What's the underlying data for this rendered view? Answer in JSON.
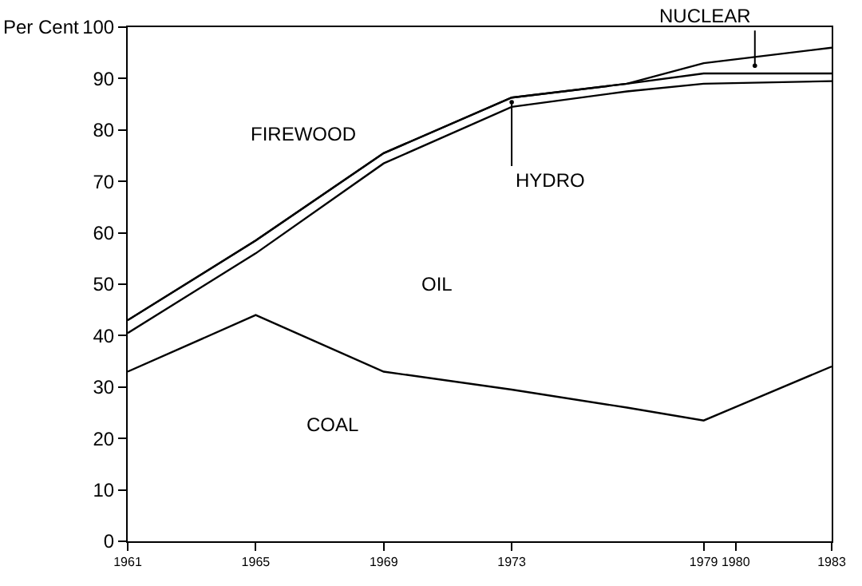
{
  "chart_data": {
    "type": "line",
    "ylabel": "Per Cent",
    "x": [
      1961,
      1965,
      1969,
      1973,
      1976.6,
      1979,
      1983
    ],
    "series": [
      {
        "color": "#000000",
        "values": [
          33,
          44,
          33,
          29.5,
          26,
          23.5,
          34
        ]
      },
      {
        "color": "#000000",
        "values": [
          40.5,
          56,
          73.5,
          84.5,
          87.5,
          89,
          89.5
        ]
      },
      {
        "color": "#000000",
        "values": [
          43,
          58.5,
          75.5,
          86.3,
          89,
          91,
          91
        ]
      },
      {
        "color": "#000000",
        "values": [
          43,
          58.5,
          75.5,
          86.3,
          89,
          93,
          96
        ]
      }
    ],
    "annotations": [
      "FIREWOOD",
      "OIL",
      "COAL",
      {
        "text": "HYDRO",
        "x": 1973,
        "y": 85.4
      },
      {
        "text": "NUCLEAR",
        "x": 1980.6,
        "y": 92.5
      }
    ],
    "xlim": [
      1961,
      1983
    ],
    "xticks": [
      1961,
      1965,
      1969,
      1973,
      1979,
      1980,
      1983
    ],
    "ylim": [
      0,
      100
    ],
    "yticks": [
      0,
      10,
      20,
      30,
      40,
      50,
      60,
      70,
      80,
      90,
      100
    ],
    "marker": "none",
    "line_style": "solid"
  }
}
